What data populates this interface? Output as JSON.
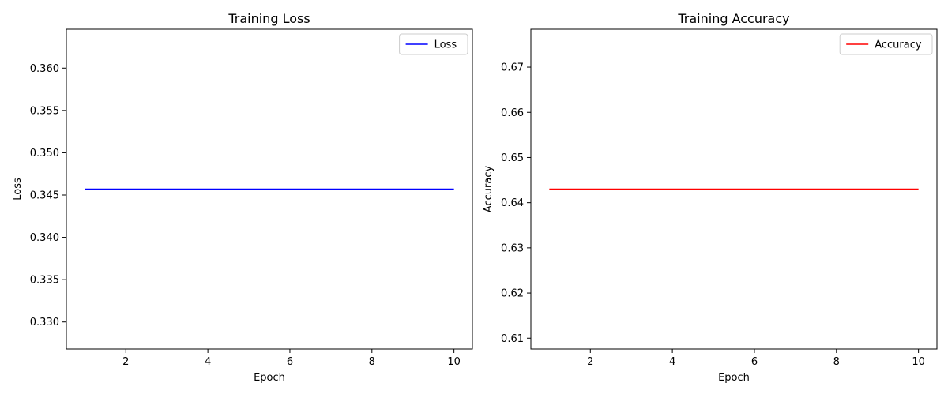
{
  "chart_data": [
    {
      "type": "line",
      "title": "Training Loss",
      "xlabel": "Epoch",
      "ylabel": "Loss",
      "xlim": [
        0.55,
        10.45
      ],
      "ylim": [
        0.3268,
        0.3646
      ],
      "xticks": [
        2,
        4,
        6,
        8,
        10
      ],
      "xtick_labels": [
        "2",
        "4",
        "6",
        "8",
        "10"
      ],
      "yticks": [
        0.33,
        0.335,
        0.34,
        0.345,
        0.35,
        0.355,
        0.36
      ],
      "ytick_labels": [
        "0.330",
        "0.335",
        "0.340",
        "0.345",
        "0.350",
        "0.355",
        "0.360"
      ],
      "x": [
        1,
        2,
        3,
        4,
        5,
        6,
        7,
        8,
        9,
        10
      ],
      "series": [
        {
          "name": "Loss",
          "color": "#0000ff",
          "values": [
            0.3457,
            0.3457,
            0.3457,
            0.3457,
            0.3457,
            0.3457,
            0.3457,
            0.3457,
            0.3457,
            0.3457
          ]
        }
      ],
      "legend": "top-right",
      "grid": false
    },
    {
      "type": "line",
      "title": "Training Accuracy",
      "xlabel": "Epoch",
      "ylabel": "Accuracy",
      "xlim": [
        0.55,
        10.45
      ],
      "ylim": [
        0.6076,
        0.6784
      ],
      "xticks": [
        2,
        4,
        6,
        8,
        10
      ],
      "xtick_labels": [
        "2",
        "4",
        "6",
        "8",
        "10"
      ],
      "yticks": [
        0.61,
        0.62,
        0.63,
        0.64,
        0.65,
        0.66,
        0.67
      ],
      "ytick_labels": [
        "0.61",
        "0.62",
        "0.63",
        "0.64",
        "0.65",
        "0.66",
        "0.67"
      ],
      "x": [
        1,
        2,
        3,
        4,
        5,
        6,
        7,
        8,
        9,
        10
      ],
      "series": [
        {
          "name": "Accuracy",
          "color": "#ff0000",
          "values": [
            0.643,
            0.643,
            0.643,
            0.643,
            0.643,
            0.643,
            0.643,
            0.643,
            0.643,
            0.643
          ]
        }
      ],
      "legend": "top-right",
      "grid": false
    }
  ]
}
